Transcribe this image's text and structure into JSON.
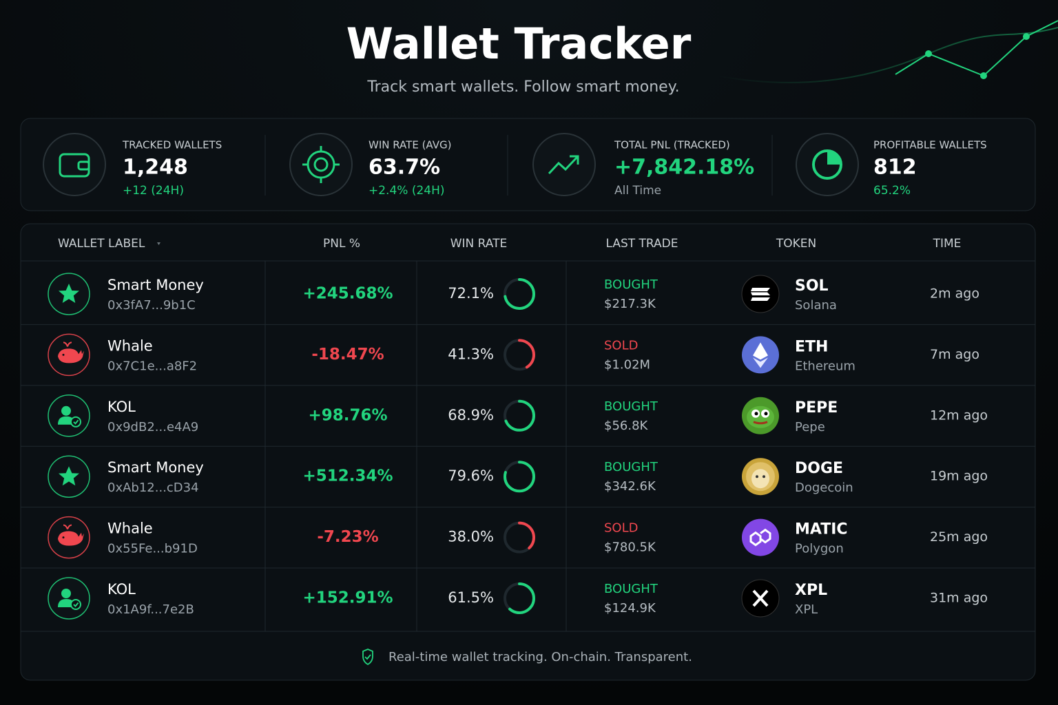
{
  "header": {
    "title": "Wallet Tracker",
    "subtitle": "Track smart wallets. Follow smart money."
  },
  "stats": [
    {
      "label": "TRACKED WALLETS",
      "value": "1,248",
      "change": "+12 (24H)",
      "change_color": "#22d47e",
      "value_color": "#ffffff"
    },
    {
      "label": "WIN RATE (AVG)",
      "value": "63.7%",
      "change": "+2.4% (24H)",
      "change_color": "#22d47e",
      "value_color": "#ffffff"
    },
    {
      "label": "TOTAL PNL (TRACKED)",
      "value": "+7,842.18%",
      "change": "All Time",
      "change_color": "#9aa3aa",
      "value_color": "#22d47e"
    },
    {
      "label": "PROFITABLE WALLETS",
      "value": "812",
      "change": "65.2%",
      "change_color": "#22d47e",
      "value_color": "#ffffff"
    }
  ],
  "table": {
    "columns": [
      "WALLET LABEL",
      "PNL %",
      "WIN RATE",
      "LAST TRADE",
      "TOKEN",
      "TIME"
    ],
    "rows": [
      {
        "label": "Smart Money",
        "address": "0x3fA7...9b1C",
        "pnl": "+245.68%",
        "win_rate": 72.1,
        "win_rate_label": "72.1%",
        "action": "BOUGHT",
        "amount": "$217.3K",
        "symbol": "SOL",
        "token": "Solana",
        "time": "2m ago",
        "color": "#22d47e"
      },
      {
        "label": "Whale",
        "address": "0x7C1e...a8F2",
        "pnl": "-18.47%",
        "win_rate": 41.3,
        "win_rate_label": "41.3%",
        "action": "SOLD",
        "amount": "$1.02M",
        "symbol": "ETH",
        "token": "Ethereum",
        "time": "7m ago",
        "color": "#f0474f"
      },
      {
        "label": "KOL",
        "address": "0x9dB2...e4A9",
        "pnl": "+98.76%",
        "win_rate": 68.9,
        "win_rate_label": "68.9%",
        "action": "BOUGHT",
        "amount": "$56.8K",
        "symbol": "PEPE",
        "token": "Pepe",
        "time": "12m ago",
        "color": "#22d47e"
      },
      {
        "label": "Smart Money",
        "address": "0xAb12...cD34",
        "pnl": "+512.34%",
        "win_rate": 79.6,
        "win_rate_label": "79.6%",
        "action": "BOUGHT",
        "amount": "$342.6K",
        "symbol": "DOGE",
        "token": "Dogecoin",
        "time": "19m ago",
        "color": "#22d47e"
      },
      {
        "label": "Whale",
        "address": "0x55Fe...b91D",
        "pnl": "-7.23%",
        "win_rate": 38.0,
        "win_rate_label": "38.0%",
        "action": "SOLD",
        "amount": "$780.5K",
        "symbol": "MATIC",
        "token": "Polygon",
        "time": "25m ago",
        "color": "#f0474f"
      },
      {
        "label": "KOL",
        "address": "0x1A9f...7e2B",
        "pnl": "+152.91%",
        "win_rate": 61.5,
        "win_rate_label": "61.5%",
        "action": "BOUGHT",
        "amount": "$124.9K",
        "symbol": "XPL",
        "token": "XPL",
        "time": "31m ago",
        "color": "#22d47e"
      }
    ]
  },
  "footer": {
    "text": "Real-time wallet tracking. On-chain. Transparent."
  }
}
